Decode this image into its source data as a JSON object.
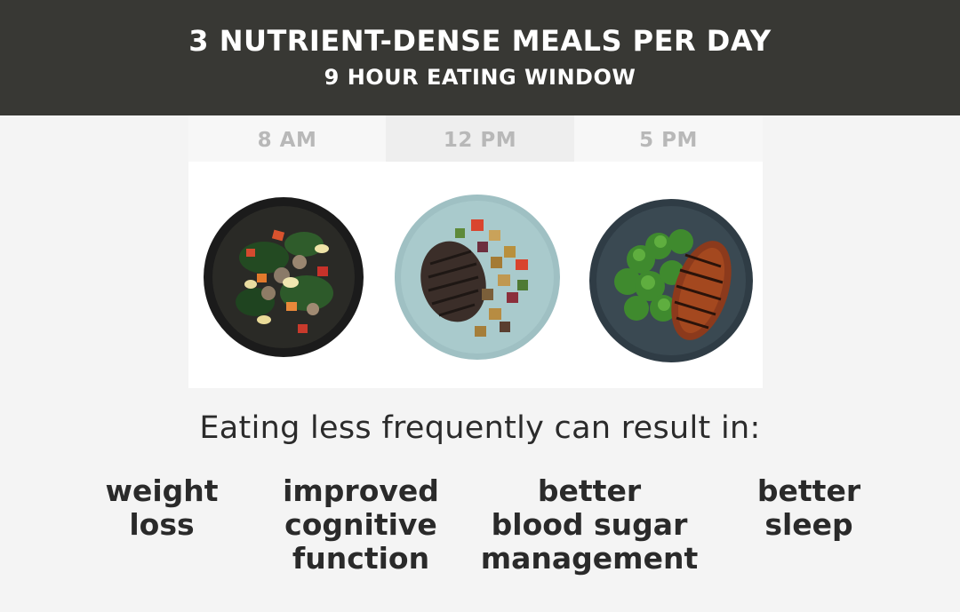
{
  "header": {
    "title": "3 NUTRIENT-DENSE MEALS PER DAY",
    "subtitle": "9 HOUR EATING WINDOW"
  },
  "meals": [
    {
      "time": "8 AM",
      "icon": "veggie-scramble-bowl-image"
    },
    {
      "time": "12 PM",
      "icon": "steak-and-roasted-vegetables-plate-image"
    },
    {
      "time": "5 PM",
      "icon": "chicken-and-broccoli-plate-image"
    }
  ],
  "intro": "Eating less frequently can result in:",
  "benefits": [
    "weight\nloss",
    "improved\ncognitive\nfunction",
    "better\nblood sugar\nmanagement",
    "better\nsleep"
  ],
  "colors": {
    "header_bg": "#383834",
    "time_label": "#b8b8b8",
    "body_text": "#2a2a2a"
  }
}
